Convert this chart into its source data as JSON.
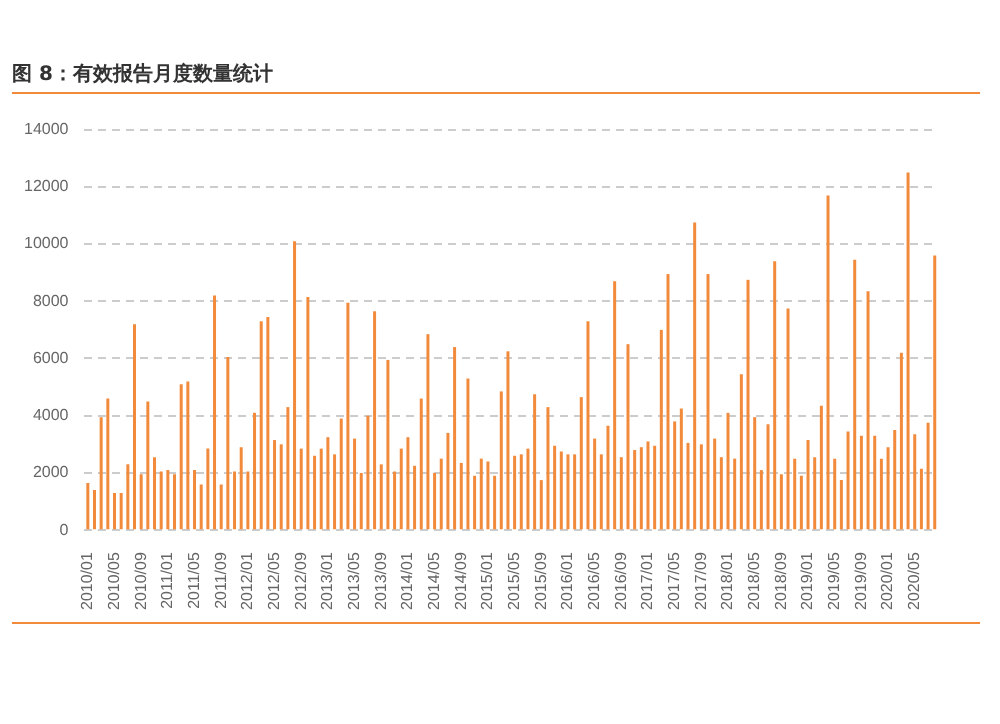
{
  "chart_data": {
    "type": "bar",
    "title": "图 8：有效报告月度数量统计",
    "categories": [
      "2010/01",
      null,
      null,
      null,
      "2010/05",
      null,
      null,
      null,
      "2010/09",
      null,
      null,
      null,
      "2011/01",
      null,
      null,
      null,
      "2011/05",
      null,
      null,
      null,
      "2011/09",
      null,
      null,
      null,
      "2012/01",
      null,
      null,
      null,
      "2012/05",
      null,
      null,
      null,
      "2012/09",
      null,
      null,
      null,
      "2013/01",
      null,
      null,
      null,
      "2013/05",
      null,
      null,
      null,
      "2013/09",
      null,
      null,
      null,
      "2014/01",
      null,
      null,
      null,
      "2014/05",
      null,
      null,
      null,
      "2014/09",
      null,
      null,
      null,
      "2015/01",
      null,
      null,
      null,
      "2015/05",
      null,
      null,
      null,
      "2015/09",
      null,
      null,
      null,
      "2016/01",
      null,
      null,
      null,
      "2016/05",
      null,
      null,
      null,
      "2016/09",
      null,
      null,
      null,
      "2017/01",
      null,
      null,
      null,
      "2017/05",
      null,
      null,
      null,
      "2017/09",
      null,
      null,
      null,
      "2018/01",
      null,
      null,
      null,
      "2018/05",
      null,
      null,
      null,
      "2018/09",
      null,
      null,
      null,
      "2019/01",
      null,
      null,
      null,
      "2019/05",
      null,
      null,
      null,
      "2019/09",
      null,
      null,
      null,
      "2020/01",
      null,
      null,
      null,
      "2020/05",
      null,
      null,
      null
    ],
    "values": [
      1650,
      1400,
      3950,
      4600,
      1300,
      1300,
      2300,
      7200,
      1950,
      4500,
      2550,
      2050,
      2100,
      1950,
      5100,
      5200,
      2100,
      1600,
      2850,
      8200,
      1600,
      6050,
      2050,
      2900,
      2050,
      4100,
      7300,
      7450,
      3150,
      3000,
      4300,
      10100,
      2850,
      8150,
      2600,
      2850,
      3250,
      2650,
      3900,
      7950,
      3200,
      2000,
      4000,
      7650,
      2300,
      5950,
      2050,
      2850,
      3250,
      2250,
      4600,
      6850,
      2000,
      2500,
      3400,
      6400,
      2350,
      5300,
      1900,
      2500,
      2400,
      1900,
      4850,
      6250,
      2600,
      2650,
      2850,
      4750,
      1750,
      4300,
      2950,
      2750,
      2650,
      2650,
      4650,
      7300,
      3200,
      2650,
      3650,
      8700,
      2550,
      6500,
      2800,
      2900,
      3100,
      2950,
      7000,
      8950,
      3800,
      4250,
      3050,
      10750,
      3000,
      8950,
      3200,
      2550,
      4100,
      2500,
      5450,
      8750,
      3950,
      2100,
      3700,
      9400,
      1950,
      7750,
      2500,
      1900,
      3150,
      2550,
      4350,
      11700,
      2500,
      1750,
      3450,
      9450,
      3300,
      8350,
      3300,
      2500,
      2900,
      3500,
      6200,
      12500,
      3350,
      2150,
      3750,
      9600
    ],
    "color": "#f28a3c",
    "ylim": [
      0,
      14000
    ],
    "yticks": [
      0,
      2000,
      4000,
      6000,
      8000,
      10000,
      12000,
      14000
    ],
    "grid": "y"
  }
}
